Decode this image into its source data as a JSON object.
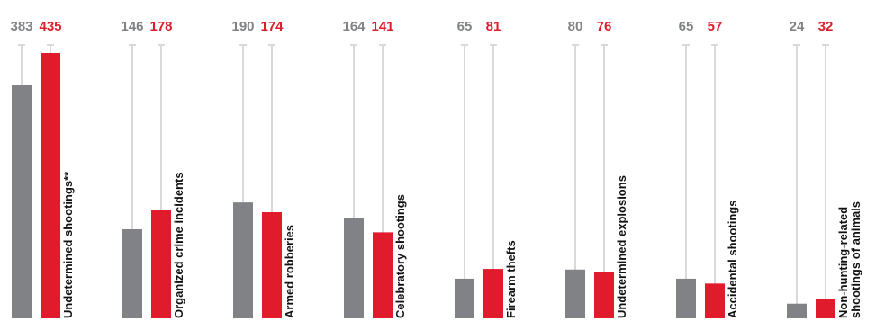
{
  "chart_data": {
    "type": "bar",
    "categories": [
      [
        "Undetermined shootings**"
      ],
      [
        "Organized crime incidents"
      ],
      [
        "Armed robberies"
      ],
      [
        "Celebratory shootings"
      ],
      [
        "Firearm thefts"
      ],
      [
        "Undetermined explosions"
      ],
      [
        "Accidental shootings"
      ],
      [
        "Non-hunting-related",
        "shootings of animals"
      ]
    ],
    "series": [
      {
        "values": [
          383,
          146,
          190,
          164,
          65,
          80,
          65,
          24
        ],
        "color": "#808285"
      },
      {
        "values": [
          435,
          178,
          174,
          141,
          81,
          76,
          57,
          32
        ],
        "color": "#e01b2c"
      }
    ],
    "ylim": [
      0,
      460
    ],
    "grid": false,
    "legend": "none",
    "value_labels": "top",
    "colors": {
      "series_a": "#808285",
      "series_b": "#e01b2c",
      "stem": "#d9d9d9",
      "label": "#111111"
    }
  }
}
